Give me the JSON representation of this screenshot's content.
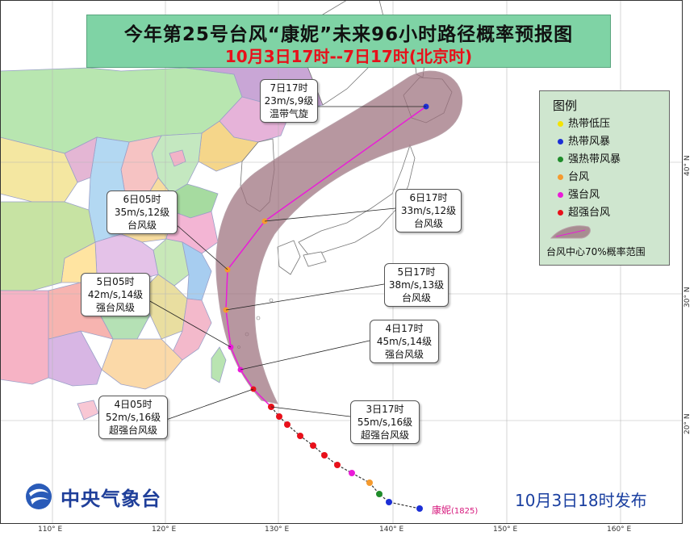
{
  "title": {
    "main": "今年第25号台风“康妮”未来96小时路径概率预报图",
    "sub": "10月3日17时--7日17时(北京时)"
  },
  "callouts": [
    {
      "id": "d7-17",
      "time": "7日17时",
      "wind": "23m/s,9级",
      "level": "温带气旋"
    },
    {
      "id": "d6-17",
      "time": "6日17时",
      "wind": "33m/s,12级",
      "level": "台风级"
    },
    {
      "id": "d6-05",
      "time": "6日05时",
      "wind": "35m/s,12级",
      "level": "台风级"
    },
    {
      "id": "d5-17",
      "time": "5日17时",
      "wind": "38m/s,13级",
      "level": "台风级"
    },
    {
      "id": "d5-05",
      "time": "5日05时",
      "wind": "42m/s,14级",
      "level": "强台风级"
    },
    {
      "id": "d4-17",
      "time": "4日17时",
      "wind": "45m/s,14级",
      "level": "强台风级"
    },
    {
      "id": "d4-05",
      "time": "4日05时",
      "wind": "52m/s,16级",
      "level": "超强台风级"
    },
    {
      "id": "d3-17",
      "time": "3日17时",
      "wind": "55m/s,16级",
      "level": "超强台风级"
    }
  ],
  "legend": {
    "title": "图例",
    "items": [
      {
        "label": "热带低压",
        "color": "#f4e300"
      },
      {
        "label": "热带风暴",
        "color": "#1c2fd6"
      },
      {
        "label": "强热带风暴",
        "color": "#1f8c2a"
      },
      {
        "label": "台风",
        "color": "#f59a2e"
      },
      {
        "label": "强台风",
        "color": "#ea1bd8"
      },
      {
        "label": "超强台风",
        "color": "#e8101a"
      }
    ],
    "cone_label": "台风中心70%概率范围"
  },
  "agency": {
    "name": "中央气象台"
  },
  "issued": "10月3日18时发布",
  "storm": {
    "name": "康妮",
    "code": "(1825)"
  },
  "axes": {
    "lon_labels": [
      "110° E",
      "120° E",
      "130° E",
      "140° E",
      "150° E",
      "160° E"
    ],
    "lat_labels": [
      "20° N",
      "30° N",
      "40° N"
    ]
  },
  "colors": {
    "sea": "#ffffff",
    "land_japan": "#ffffff",
    "cone": "#9b6f7c",
    "forecast_track": "#ea1bd8",
    "title_bg": "#7fd3a5",
    "legend_bg": "#cfe6cf"
  }
}
